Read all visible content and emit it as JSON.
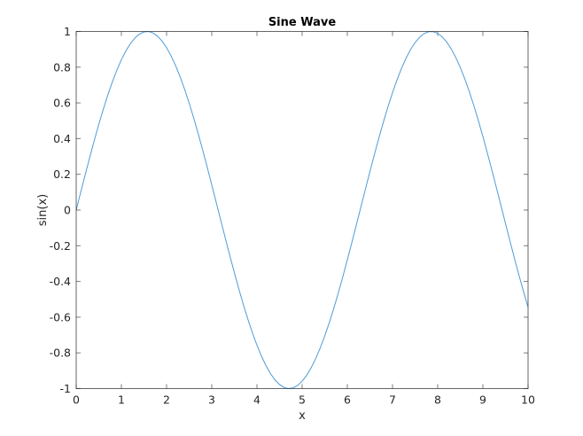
{
  "chart_data": {
    "type": "line",
    "title": "Sine Wave",
    "xlabel": "x",
    "ylabel": "sin(x)",
    "xlim": [
      0,
      10
    ],
    "ylim": [
      -1,
      1
    ],
    "grid": false,
    "xticks": [
      "0",
      "1",
      "2",
      "3",
      "4",
      "5",
      "6",
      "7",
      "8",
      "9",
      "10"
    ],
    "yticks": [
      "-1",
      "-0.8",
      "-0.6",
      "-0.4",
      "-0.2",
      "0",
      "0.2",
      "0.4",
      "0.6",
      "0.8",
      "1"
    ],
    "line_color": "#4d9cd8",
    "series": [
      {
        "x": [
          0,
          0.1,
          0.2,
          0.3,
          0.4,
          0.5,
          0.6,
          0.7,
          0.8,
          0.9,
          1,
          1.1,
          1.2,
          1.3,
          1.4,
          1.5,
          1.6,
          1.7,
          1.8,
          1.9,
          2,
          2.1,
          2.2,
          2.3,
          2.4,
          2.5,
          2.6,
          2.7,
          2.8,
          2.9,
          3,
          3.1,
          3.2,
          3.3,
          3.4,
          3.5,
          3.6,
          3.7,
          3.8,
          3.9,
          4,
          4.1,
          4.2,
          4.3,
          4.4,
          4.5,
          4.6,
          4.7,
          4.8,
          4.9,
          5,
          5.1,
          5.2,
          5.3,
          5.4,
          5.5,
          5.6,
          5.7,
          5.8,
          5.9,
          6,
          6.1,
          6.2,
          6.3,
          6.4,
          6.5,
          6.6,
          6.7,
          6.8,
          6.9,
          7,
          7.1,
          7.2,
          7.3,
          7.4,
          7.5,
          7.6,
          7.7,
          7.8,
          7.9,
          8,
          8.1,
          8.2,
          8.3,
          8.4,
          8.5,
          8.6,
          8.7,
          8.8,
          8.9,
          9,
          9.1,
          9.2,
          9.3,
          9.4,
          9.5,
          9.6,
          9.7,
          9.8,
          9.9,
          10
        ],
        "y": [
          0,
          0.0998,
          0.1987,
          0.2955,
          0.3894,
          0.4794,
          0.5646,
          0.6442,
          0.7174,
          0.7833,
          0.8415,
          0.8912,
          0.932,
          0.9636,
          0.9854,
          0.9975,
          0.9996,
          0.9917,
          0.9738,
          0.9463,
          0.9093,
          0.8632,
          0.8085,
          0.7457,
          0.6755,
          0.5985,
          0.5155,
          0.4274,
          0.335,
          0.2392,
          0.1411,
          0.0416,
          -0.0584,
          -0.1577,
          -0.2555,
          -0.3508,
          -0.4425,
          -0.5298,
          -0.6119,
          -0.6878,
          -0.7568,
          -0.8183,
          -0.8716,
          -0.9162,
          -0.9516,
          -0.9775,
          -0.9937,
          -0.9999,
          -0.9962,
          -0.9825,
          -0.9589,
          -0.9258,
          -0.8835,
          -0.8323,
          -0.7728,
          -0.7055,
          -0.6313,
          -0.5507,
          -0.4646,
          -0.3739,
          -0.2794,
          -0.1822,
          -0.0831,
          0.0168,
          0.1165,
          0.2151,
          0.3115,
          0.4048,
          0.4941,
          0.5784,
          0.657,
          0.729,
          0.7937,
          0.8504,
          0.8987,
          0.938,
          0.9679,
          0.9882,
          0.9985,
          0.9989,
          0.9894,
          0.9699,
          0.9407,
          0.9022,
          0.8546,
          0.7985,
          0.7344,
          0.663,
          0.5849,
          0.501,
          0.4121,
          0.3191,
          0.2229,
          0.1245,
          0.0248,
          -0.0752,
          -0.1743,
          -0.2718,
          -0.3665,
          -0.4575,
          -0.544
        ]
      }
    ]
  }
}
